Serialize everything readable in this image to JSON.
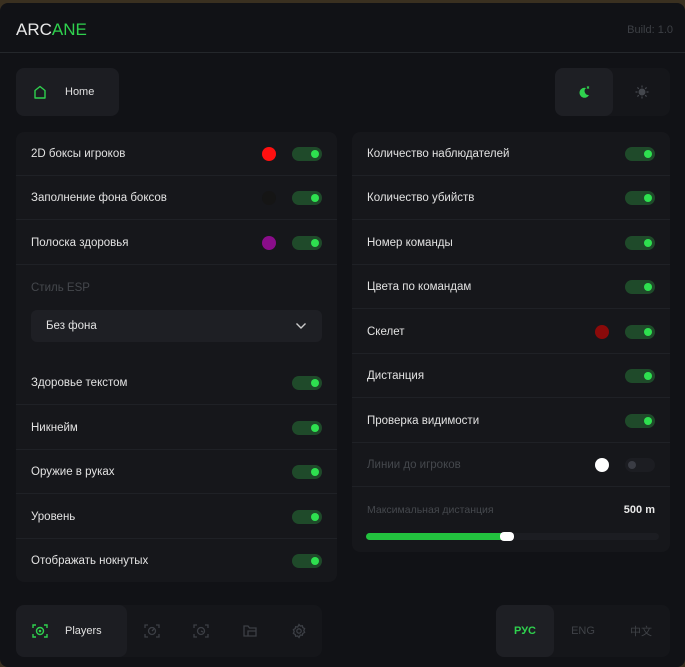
{
  "header": {
    "logo_part1": "ARC",
    "logo_part2": "ANE",
    "build": "Build: 1.0"
  },
  "top": {
    "home_label": "Home",
    "theme": {
      "dark_icon": "moon-icon",
      "light_icon": "sun-icon",
      "active": "dark"
    }
  },
  "left": {
    "rows": [
      {
        "label": "2D боксы игроков",
        "color": "#ff1010",
        "on": true
      },
      {
        "label": "Заполнение фона боксов",
        "color": "#151515",
        "on": true
      },
      {
        "label": "Полоска здоровья",
        "color": "#8a0d8a",
        "on": true
      }
    ],
    "esp_style_label": "Стиль ESP",
    "esp_style_value": "Без фона",
    "rows2": [
      {
        "label": "Здоровье текстом",
        "on": true
      },
      {
        "label": "Никнейм",
        "on": true
      },
      {
        "label": "Оружие в руках",
        "on": true
      },
      {
        "label": "Уровень",
        "on": true
      },
      {
        "label": "Отображать нокнутых",
        "on": true
      }
    ]
  },
  "right": {
    "rows": [
      {
        "label": "Количество наблюдателей",
        "on": true
      },
      {
        "label": "Количество убийств",
        "on": true
      },
      {
        "label": "Номер команды",
        "on": true
      },
      {
        "label": "Цвета по командам",
        "on": true
      },
      {
        "label": "Скелет",
        "color": "#8b0a0a",
        "on": true
      },
      {
        "label": "Дистанция",
        "on": true
      },
      {
        "label": "Проверка видимости",
        "on": true
      }
    ],
    "lines": {
      "label": "Линии до игроков",
      "color": "#ffffff",
      "on": false
    },
    "max_distance": {
      "label": "Максимальная дистанция",
      "value": "500 m",
      "fraction": 0.48
    }
  },
  "nav": {
    "active_label": "Players",
    "icons": [
      "player-scan-icon",
      "radar-icon",
      "aim-icon",
      "folder-icon",
      "gear-icon"
    ]
  },
  "langs": [
    {
      "label": "РУС",
      "active": true
    },
    {
      "label": "ENG",
      "active": false
    },
    {
      "label": "中文",
      "active": false
    }
  ],
  "colors": {
    "accent": "#2fd14e",
    "toggle_track": "#1f4a2a"
  }
}
